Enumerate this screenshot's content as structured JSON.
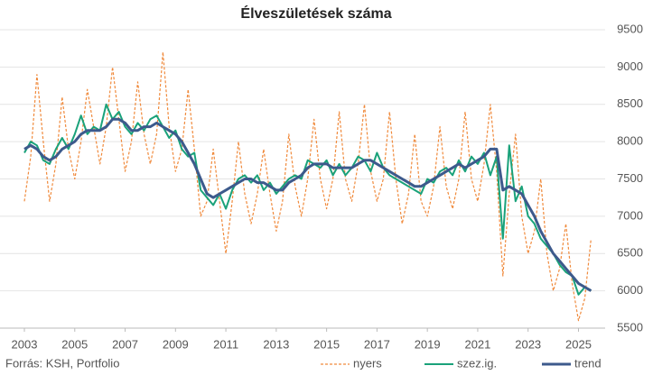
{
  "chart_data": {
    "type": "line",
    "title": "Élveszületések száma",
    "source": "Forrás: KSH, Portfolio",
    "x": [
      2003,
      2003.25,
      2003.5,
      2003.75,
      2004,
      2004.25,
      2004.5,
      2004.75,
      2005,
      2005.25,
      2005.5,
      2005.75,
      2006,
      2006.25,
      2006.5,
      2006.75,
      2007,
      2007.25,
      2007.5,
      2007.75,
      2008,
      2008.25,
      2008.5,
      2008.75,
      2009,
      2009.25,
      2009.5,
      2009.75,
      2010,
      2010.25,
      2010.5,
      2010.75,
      2011,
      2011.25,
      2011.5,
      2011.75,
      2012,
      2012.25,
      2012.5,
      2012.75,
      2013,
      2013.25,
      2013.5,
      2013.75,
      2014,
      2014.25,
      2014.5,
      2014.75,
      2015,
      2015.25,
      2015.5,
      2015.75,
      2016,
      2016.25,
      2016.5,
      2016.75,
      2017,
      2017.25,
      2017.5,
      2017.75,
      2018,
      2018.25,
      2018.5,
      2018.75,
      2019,
      2019.25,
      2019.5,
      2019.75,
      2020,
      2020.25,
      2020.5,
      2020.75,
      2021,
      2021.25,
      2021.5,
      2021.75,
      2022,
      2022.25,
      2022.5,
      2022.75,
      2023,
      2023.25,
      2023.5,
      2023.75,
      2024,
      2024.25,
      2024.5,
      2024.75,
      2025,
      2025.25,
      2025.5
    ],
    "series": [
      {
        "name": "nyers",
        "color": "#f08a3c",
        "dash": true,
        "width": 1.2,
        "values": [
          7200,
          7800,
          8900,
          8000,
          7200,
          7700,
          8600,
          7900,
          7500,
          8000,
          8700,
          8200,
          7700,
          8200,
          9000,
          8300,
          7600,
          8000,
          8800,
          8100,
          7700,
          8100,
          9200,
          8200,
          7600,
          7900,
          8700,
          7900,
          7000,
          7200,
          7900,
          7200,
          6500,
          7200,
          8000,
          7300,
          6900,
          7300,
          7900,
          7300,
          6800,
          7200,
          8100,
          7400,
          7000,
          7500,
          8300,
          7500,
          7100,
          7500,
          8400,
          7500,
          7200,
          7700,
          8500,
          7600,
          7200,
          7500,
          8400,
          7500,
          6900,
          7300,
          8100,
          7200,
          7000,
          7400,
          8200,
          7400,
          7100,
          7500,
          8400,
          7500,
          7200,
          7700,
          8500,
          7600,
          6200,
          7300,
          8100,
          7000,
          6500,
          6800,
          7500,
          6500,
          6000,
          6300,
          6900,
          6100,
          5600,
          5900,
          6700
        ]
      },
      {
        "name": "szez.ig.",
        "color": "#1aa27a",
        "dash": false,
        "width": 2,
        "values": [
          7850,
          8000,
          7950,
          7750,
          7700,
          7900,
          8050,
          7900,
          8100,
          8350,
          8100,
          8200,
          8150,
          8500,
          8300,
          8400,
          8200,
          8100,
          8250,
          8150,
          8300,
          8350,
          8200,
          8050,
          8150,
          7900,
          7800,
          7850,
          7350,
          7250,
          7150,
          7300,
          7100,
          7350,
          7500,
          7550,
          7450,
          7550,
          7350,
          7450,
          7300,
          7400,
          7500,
          7550,
          7500,
          7750,
          7700,
          7650,
          7750,
          7550,
          7700,
          7550,
          7650,
          7800,
          7750,
          7600,
          7850,
          7650,
          7550,
          7500,
          7450,
          7400,
          7350,
          7300,
          7500,
          7450,
          7600,
          7650,
          7550,
          7750,
          7600,
          7800,
          7700,
          7850,
          7550,
          7800,
          6700,
          7950,
          7200,
          7400,
          7000,
          6900,
          6700,
          6600,
          6500,
          6350,
          6250,
          6200,
          5950,
          6050,
          6000
        ]
      },
      {
        "name": "trend",
        "color": "#3d5a8c",
        "dash": false,
        "width": 3,
        "values": [
          7900,
          7950,
          7900,
          7800,
          7750,
          7800,
          7900,
          7950,
          8000,
          8100,
          8150,
          8150,
          8150,
          8200,
          8300,
          8300,
          8250,
          8150,
          8150,
          8200,
          8200,
          8250,
          8200,
          8150,
          8100,
          8000,
          7850,
          7700,
          7500,
          7300,
          7250,
          7300,
          7350,
          7400,
          7450,
          7500,
          7500,
          7450,
          7450,
          7400,
          7350,
          7350,
          7450,
          7500,
          7550,
          7650,
          7700,
          7700,
          7700,
          7650,
          7650,
          7650,
          7650,
          7700,
          7750,
          7750,
          7700,
          7650,
          7600,
          7550,
          7500,
          7450,
          7400,
          7400,
          7450,
          7500,
          7550,
          7600,
          7650,
          7700,
          7650,
          7700,
          7750,
          7800,
          7900,
          7900,
          7350,
          7400,
          7350,
          7300,
          7150,
          7000,
          6800,
          6650,
          6500,
          6400,
          6300,
          6200,
          6100,
          6050,
          6000
        ]
      }
    ],
    "xlim": [
      2003,
      2025.7
    ],
    "xticks": [
      2003,
      2005,
      2007,
      2009,
      2011,
      2013,
      2015,
      2017,
      2019,
      2021,
      2023,
      2025
    ],
    "ylim": [
      5500,
      9500
    ],
    "yticks": [
      5500,
      6000,
      6500,
      7000,
      7500,
      8000,
      8500,
      9000,
      9500
    ],
    "grid": true
  }
}
